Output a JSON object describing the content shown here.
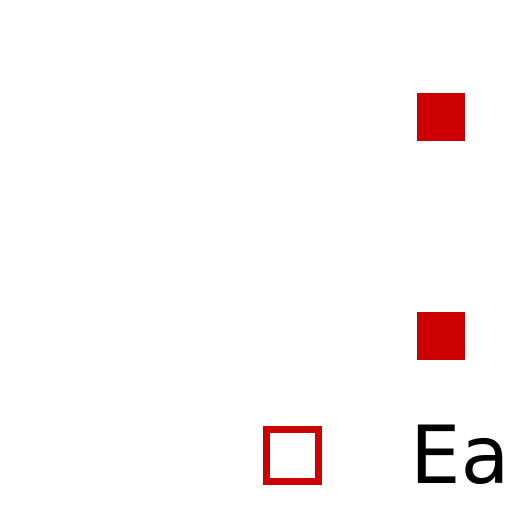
{
  "colors": {
    "accent": "#cc0000",
    "text": "#000000",
    "background": "#ffffff"
  },
  "markers": [
    {
      "name": "filled-square-top",
      "icon": "filled-square-icon"
    },
    {
      "name": "filled-square-bottom",
      "icon": "filled-square-icon"
    }
  ],
  "checkbox": {
    "icon": "empty-square-icon",
    "checked": false
  },
  "caption": {
    "text": "Ea"
  }
}
